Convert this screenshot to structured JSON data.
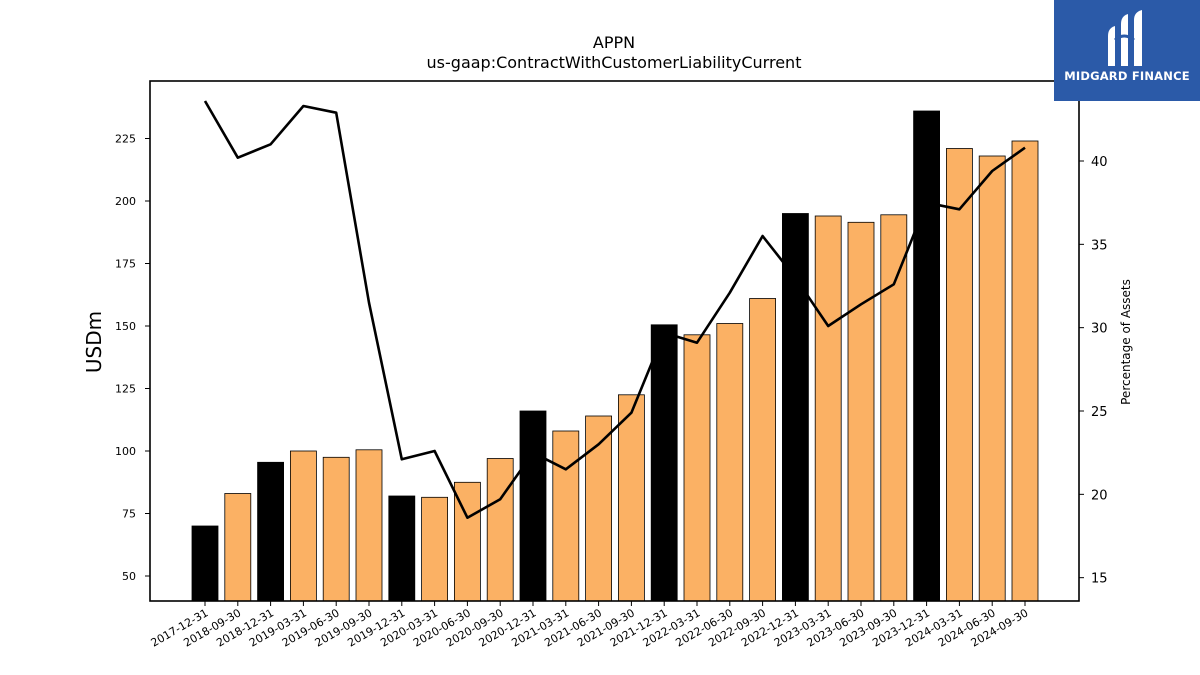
{
  "logo": {
    "text": "MIDGARD FINANCE",
    "icon": "midgard-m-logo-icon",
    "background": "#2b5aa8"
  },
  "chart_data": {
    "type": "bar",
    "title": "APPN",
    "subtitle": "us-gaap:ContractWithCustomerLiabilityCurrent",
    "ylabel": "USDm",
    "y2label": "Percentage of Assets",
    "ylim": [
      40,
      248
    ],
    "y2lim": [
      13.6,
      44.8
    ],
    "yticks": [
      50,
      75,
      100,
      125,
      150,
      175,
      200,
      225
    ],
    "y2ticks": [
      15,
      20,
      25,
      30,
      35,
      40
    ],
    "categories": [
      "2017-12-31",
      "2018-09-30",
      "2018-12-31",
      "2019-03-31",
      "2019-06-30",
      "2019-09-30",
      "2019-12-31",
      "2020-03-31",
      "2020-06-30",
      "2020-09-30",
      "2020-12-31",
      "2021-03-31",
      "2021-06-30",
      "2021-09-30",
      "2021-12-31",
      "2022-03-31",
      "2022-06-30",
      "2022-09-30",
      "2022-12-31",
      "2023-03-31",
      "2023-06-30",
      "2023-09-30",
      "2023-12-31",
      "2024-03-31",
      "2024-06-30",
      "2024-09-30"
    ],
    "series": [
      {
        "type": "bar",
        "values": [
          70,
          83,
          95.5,
          100,
          97.5,
          100.5,
          82,
          81.5,
          87.5,
          97,
          116,
          108,
          114,
          122.5,
          150.5,
          146.5,
          151,
          161,
          195,
          194,
          191.5,
          194.5,
          236,
          221,
          218,
          224
        ],
        "annual": [
          true,
          false,
          true,
          false,
          false,
          false,
          true,
          false,
          false,
          false,
          true,
          false,
          false,
          false,
          true,
          false,
          false,
          false,
          true,
          false,
          false,
          false,
          true,
          false,
          false,
          false
        ]
      },
      {
        "type": "line",
        "axis": "right",
        "values": [
          43.6,
          40.2,
          41.0,
          43.3,
          42.9,
          31.5,
          22.1,
          22.6,
          18.6,
          19.7,
          22.5,
          21.5,
          23.0,
          24.9,
          29.7,
          29.1,
          32.1,
          35.5,
          33.0,
          30.1,
          31.4,
          32.6,
          37.5,
          37.1,
          39.4,
          40.8
        ]
      }
    ],
    "colors": {
      "annual_bar": "#000000",
      "quarter_bar": "#fbb164",
      "line": "#000000"
    },
    "grid": false
  }
}
